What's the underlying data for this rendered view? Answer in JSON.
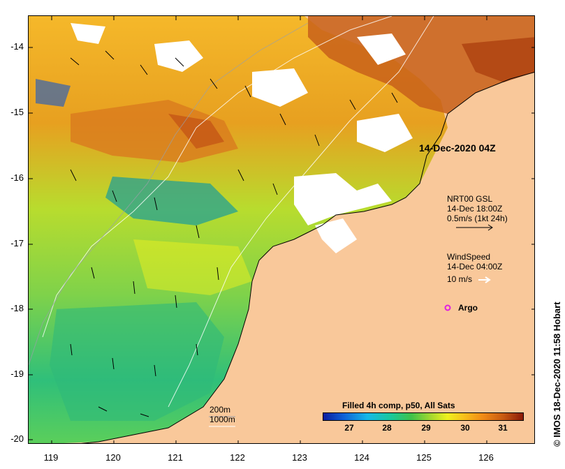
{
  "map": {
    "y_axis_labels": [
      "-14",
      "-15",
      "-16",
      "-17",
      "-18",
      "-19",
      "-20"
    ],
    "x_axis_labels": [
      "119",
      "120",
      "121",
      "122",
      "123",
      "124",
      "125",
      "126"
    ],
    "timestamp": "14-Dec-2020 04Z",
    "legend_current": {
      "line1": "NRT00 GSL",
      "line2": "14-Dec 18:00Z",
      "line3": "0.5m/s (1kt 24h)"
    },
    "legend_wind": {
      "line1": "WindSpeed",
      "line2": "14-Dec 04:00Z",
      "line3": "10 m/s"
    },
    "argo_label": "Argo",
    "bathymetry": {
      "line1": "200m",
      "line2": "1000m"
    },
    "colorbar": {
      "title": "Filled 4h comp, p50, All Sats",
      "labels": [
        "27",
        "28",
        "29",
        "30",
        "31"
      ]
    },
    "credit": "© IMOS 18-Dec-2020 11:58 Hobart",
    "colors": {
      "land": "#f9c89a",
      "argo": "#e020e0"
    }
  }
}
